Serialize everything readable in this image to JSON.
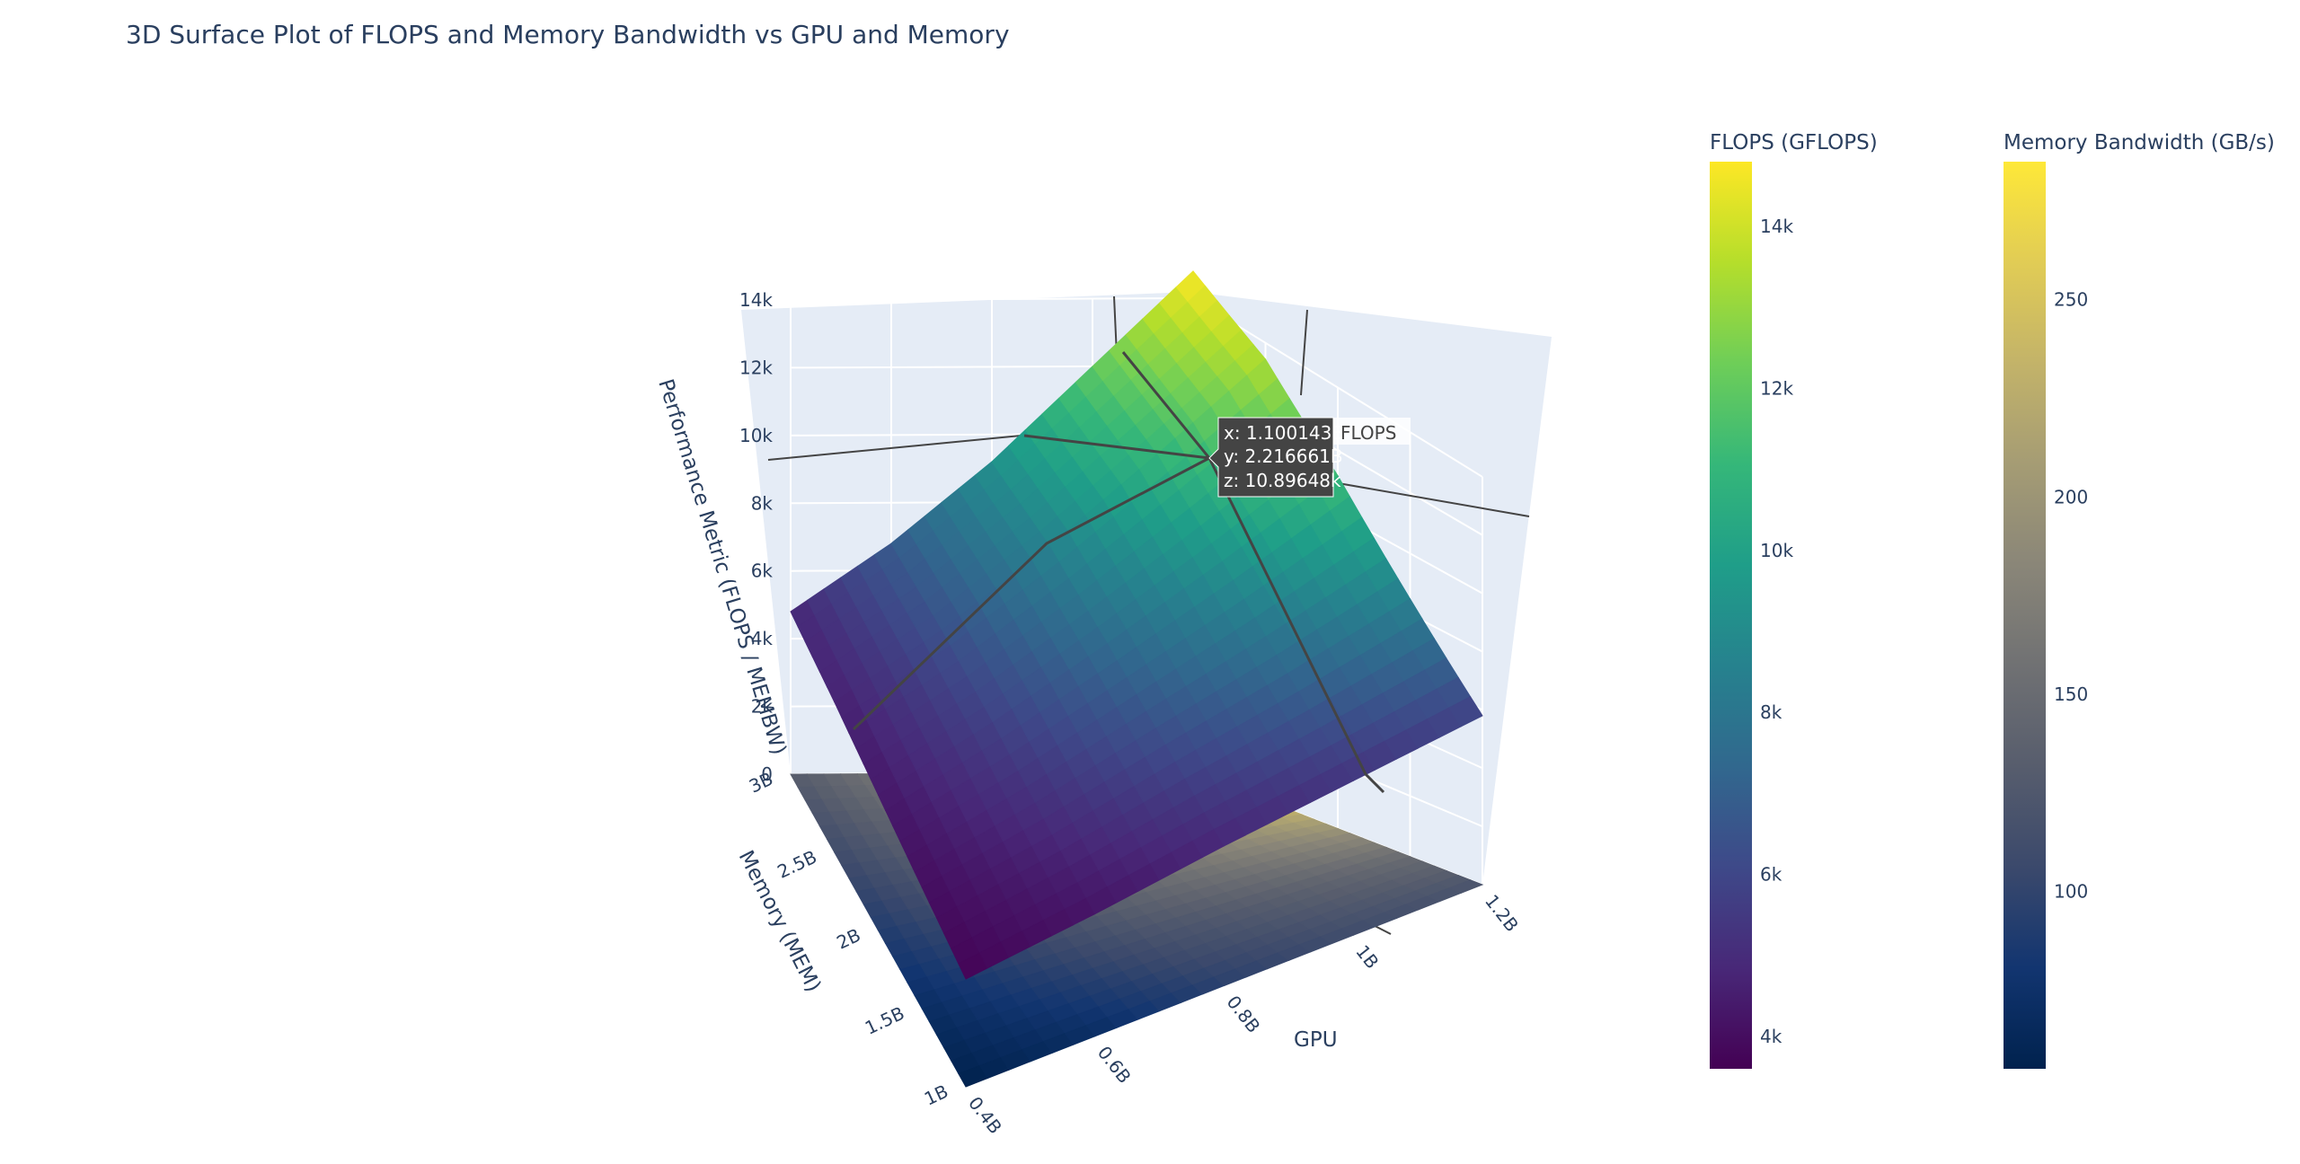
{
  "chart_data": {
    "type": "surface",
    "title": "3D Surface Plot of FLOPS and Memory Bandwidth vs GPU and Memory",
    "x": [
      0.4,
      0.6,
      0.8,
      1.0,
      1.2
    ],
    "x_unit": "B",
    "y": [
      1.0,
      1.5,
      2.0,
      2.5,
      3.0
    ],
    "y_unit": "B",
    "xaxis": {
      "title": "GPU",
      "tick_labels": [
        "0.4B",
        "0.6B",
        "0.8B",
        "1B",
        "1.2B"
      ]
    },
    "yaxis": {
      "title": "Memory (MEM)",
      "tick_labels": [
        "1B",
        "1.5B",
        "2B",
        "2.5B",
        "3B"
      ]
    },
    "zaxis": {
      "title": "Performance Metric (FLOPS / MEMBW)",
      "tick_labels": [
        "0",
        "2k",
        "4k",
        "6k",
        "8k",
        "10k",
        "12k",
        "14k"
      ],
      "range": [
        0,
        14000
      ]
    },
    "series": [
      {
        "name": "FLOPS",
        "colorscale": "Viridis",
        "cmin": 3600,
        "cmax": 14800,
        "z": [
          [
            3700,
            4200,
            4800,
            5300,
            5800
          ],
          [
            4000,
            5000,
            6200,
            7300,
            8500
          ],
          [
            4300,
            5800,
            7500,
            9300,
            11200
          ],
          [
            4600,
            6400,
            8600,
            11000,
            13500
          ],
          [
            4800,
            6800,
            9200,
            12000,
            14800
          ]
        ]
      },
      {
        "name": "Memory Bandwidth",
        "colorscale": "Cividis",
        "cmin": 55,
        "cmax": 285,
        "z": [
          [
            55,
            70,
            95,
            110,
            120
          ],
          [
            70,
            95,
            120,
            135,
            150
          ],
          [
            90,
            120,
            150,
            175,
            200
          ],
          [
            110,
            145,
            180,
            215,
            250
          ],
          [
            130,
            165,
            210,
            250,
            285
          ]
        ]
      }
    ],
    "colorbars": [
      {
        "title": "FLOPS (GFLOPS)",
        "tick_labels": [
          "4k",
          "6k",
          "8k",
          "10k",
          "12k",
          "14k"
        ],
        "tick_values": [
          4000,
          6000,
          8000,
          10000,
          12000,
          14000
        ],
        "min": 3600,
        "max": 14800,
        "colors": [
          "#440154",
          "#482878",
          "#3e4989",
          "#31688e",
          "#26828e",
          "#1f9e89",
          "#35b779",
          "#6ece58",
          "#b5de2b",
          "#fde725"
        ]
      },
      {
        "title": "Memory Bandwidth (GB/s)",
        "tick_labels": [
          "100",
          "150",
          "200",
          "250"
        ],
        "tick_values": [
          100,
          150,
          200,
          250
        ],
        "min": 55,
        "max": 285,
        "colors": [
          "#00224e",
          "#123570",
          "#3b496c",
          "#575d6d",
          "#707173",
          "#8a8678",
          "#a59c74",
          "#c3b369",
          "#e1cc55",
          "#fee838"
        ]
      }
    ],
    "hover": {
      "lines": [
        "x: 1.100143B",
        "y: 2.216661B",
        "z: 10.89648k"
      ],
      "trace_name": "FLOPS"
    },
    "colors": {
      "scene_background": "#e5ecf6",
      "grid": "#ffffff",
      "text": "#2a3f5f",
      "hover_background": "#444444"
    }
  }
}
